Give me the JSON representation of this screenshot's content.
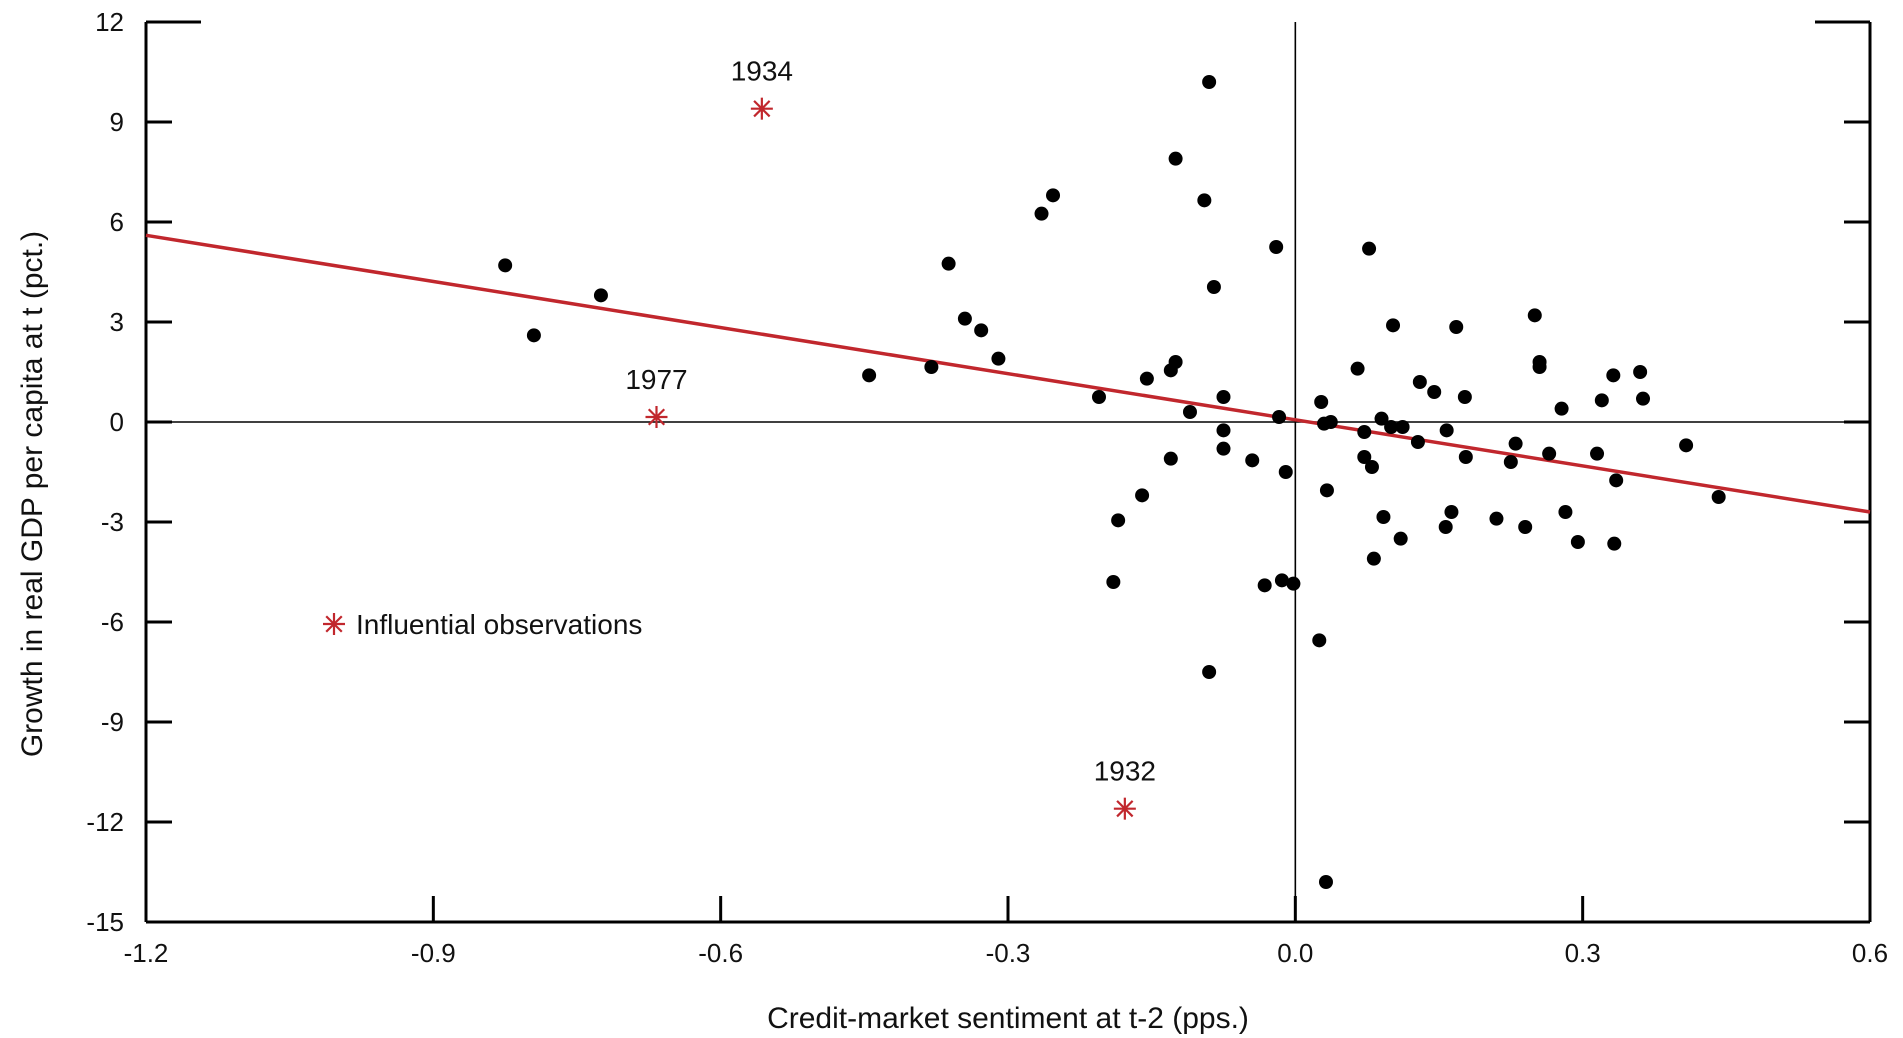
{
  "chart_data": {
    "type": "scatter",
    "title": "",
    "xlabel": "Credit-market sentiment at t-2 (pps.)",
    "ylabel": "Growth in real GDP per capita at t (pct.)",
    "xlim": [
      -1.2,
      0.6
    ],
    "ylim": [
      -15,
      12
    ],
    "x_ticks": [
      -1.2,
      -0.9,
      -0.6,
      -0.3,
      0.0,
      0.3,
      0.6
    ],
    "x_tick_labels": [
      "-1.2",
      "-0.9",
      "-0.6",
      "-0.3",
      "0.0",
      "0.3",
      "0.6"
    ],
    "y_ticks": [
      12,
      9,
      6,
      3,
      0,
      -3,
      -6,
      -9,
      -12,
      -15
    ],
    "y_tick_labels": [
      "12",
      "9",
      "6",
      "3",
      "0",
      "-3",
      "-6",
      "-9",
      "-12",
      "-15"
    ],
    "grid": false,
    "legend": {
      "position": "lower-left",
      "label": "Influential observations"
    },
    "series": [
      {
        "marker": "circle",
        "color": "#000000",
        "points": [
          [
            -0.825,
            4.7
          ],
          [
            -0.795,
            2.6
          ],
          [
            -0.725,
            3.8
          ],
          [
            -0.445,
            1.4
          ],
          [
            -0.38,
            1.65
          ],
          [
            -0.362,
            4.75
          ],
          [
            -0.345,
            3.1
          ],
          [
            -0.328,
            2.75
          ],
          [
            -0.31,
            1.9
          ],
          [
            -0.265,
            6.25
          ],
          [
            -0.253,
            6.8
          ],
          [
            -0.205,
            0.75
          ],
          [
            -0.19,
            -4.8
          ],
          [
            -0.185,
            -2.95
          ],
          [
            -0.16,
            -2.2
          ],
          [
            -0.155,
            1.3
          ],
          [
            -0.13,
            -1.1
          ],
          [
            -0.13,
            1.55
          ],
          [
            -0.125,
            1.8
          ],
          [
            -0.125,
            7.9
          ],
          [
            -0.11,
            0.3
          ],
          [
            -0.095,
            6.65
          ],
          [
            -0.09,
            10.2
          ],
          [
            -0.09,
            -7.5
          ],
          [
            -0.085,
            4.05
          ],
          [
            -0.075,
            0.75
          ],
          [
            -0.075,
            -0.25
          ],
          [
            -0.075,
            -0.8
          ],
          [
            -0.045,
            -1.15
          ],
          [
            -0.032,
            -4.9
          ],
          [
            -0.02,
            5.25
          ],
          [
            -0.017,
            0.15
          ],
          [
            -0.014,
            -4.75
          ],
          [
            -0.01,
            -1.5
          ],
          [
            -0.002,
            -4.85
          ],
          [
            0.025,
            -6.55
          ],
          [
            0.027,
            0.6
          ],
          [
            0.03,
            -0.05
          ],
          [
            0.032,
            -13.8
          ],
          [
            0.033,
            -2.05
          ],
          [
            0.037,
            0.0
          ],
          [
            0.065,
            1.6
          ],
          [
            0.072,
            -0.3
          ],
          [
            0.072,
            -1.05
          ],
          [
            0.077,
            5.2
          ],
          [
            0.08,
            -1.35
          ],
          [
            0.082,
            -4.1
          ],
          [
            0.09,
            0.1
          ],
          [
            0.092,
            -2.85
          ],
          [
            0.1,
            -0.15
          ],
          [
            0.102,
            2.9
          ],
          [
            0.11,
            -3.5
          ],
          [
            0.112,
            -0.15
          ],
          [
            0.128,
            -0.6
          ],
          [
            0.13,
            1.2
          ],
          [
            0.145,
            0.9
          ],
          [
            0.157,
            -3.15
          ],
          [
            0.158,
            -0.25
          ],
          [
            0.163,
            -2.7
          ],
          [
            0.168,
            2.85
          ],
          [
            0.177,
            0.75
          ],
          [
            0.178,
            -1.05
          ],
          [
            0.21,
            -2.9
          ],
          [
            0.225,
            -1.2
          ],
          [
            0.23,
            -0.65
          ],
          [
            0.24,
            -3.15
          ],
          [
            0.25,
            3.2
          ],
          [
            0.255,
            1.8
          ],
          [
            0.255,
            1.65
          ],
          [
            0.265,
            -0.95
          ],
          [
            0.278,
            0.4
          ],
          [
            0.282,
            -2.7
          ],
          [
            0.295,
            -3.6
          ],
          [
            0.315,
            -0.95
          ],
          [
            0.32,
            0.65
          ],
          [
            0.332,
            1.4
          ],
          [
            0.333,
            -3.65
          ],
          [
            0.335,
            -1.75
          ],
          [
            0.36,
            1.5
          ],
          [
            0.363,
            0.7
          ],
          [
            0.408,
            -0.7
          ],
          [
            0.442,
            -2.25
          ]
        ]
      },
      {
        "name": "Influential observations",
        "marker": "asterisk",
        "color": "#c1272d",
        "points": [
          {
            "x": -0.557,
            "y": 9.4,
            "label": "1934"
          },
          {
            "x": -0.667,
            "y": 0.15,
            "label": "1977"
          },
          {
            "x": -0.178,
            "y": -11.6,
            "label": "1932"
          }
        ]
      }
    ],
    "fit_line": {
      "color": "#c1272d",
      "points": [
        [
          -1.2,
          5.6
        ],
        [
          0.6,
          -2.7
        ]
      ]
    },
    "reference_lines": {
      "x": 0,
      "y": 0
    }
  }
}
